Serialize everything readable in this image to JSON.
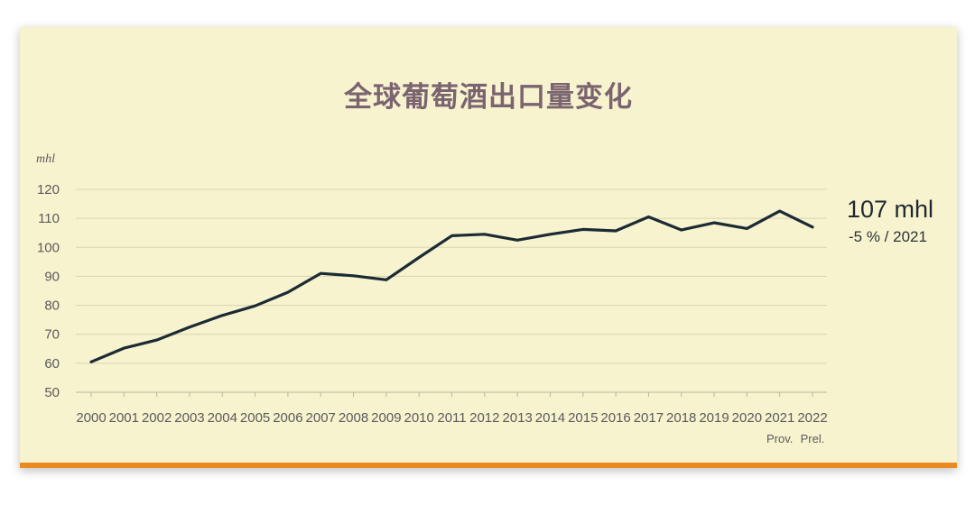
{
  "chart_data": {
    "type": "line",
    "title": "全球葡萄酒出口量变化",
    "ylabel": "mhl",
    "xlabel": "",
    "ylim": [
      50,
      120
    ],
    "y_ticks": [
      50,
      60,
      70,
      80,
      90,
      100,
      110,
      120
    ],
    "grid": true,
    "x": [
      "2000",
      "2001",
      "2002",
      "2003",
      "2004",
      "2005",
      "2006",
      "2007",
      "2008",
      "2009",
      "2010",
      "2011",
      "2012",
      "2013",
      "2014",
      "2015",
      "2016",
      "2017",
      "2018",
      "2019",
      "2020",
      "2021",
      "2022"
    ],
    "series": [
      {
        "values": [
          60.5,
          65.2,
          68.0,
          72.5,
          76.5,
          79.8,
          84.5,
          91.0,
          90.2,
          88.8,
          96.5,
          104.0,
          104.5,
          102.5,
          104.5,
          106.2,
          105.7,
          110.5,
          106.0,
          108.5,
          106.5,
          112.5,
          107.0
        ]
      }
    ],
    "x_notes": [
      {
        "x": "2021",
        "text": "Prov."
      },
      {
        "x": "2022",
        "text": "Prel."
      }
    ],
    "annotation": {
      "value_text": "107 mhl",
      "change_text": "-5 % / 2021"
    },
    "colors": {
      "background": "#f8f3cf",
      "line": "#1b2b33",
      "grid": "#d9d4b0",
      "title": "#7a6470",
      "accent_bar": "#ec8a22"
    }
  }
}
